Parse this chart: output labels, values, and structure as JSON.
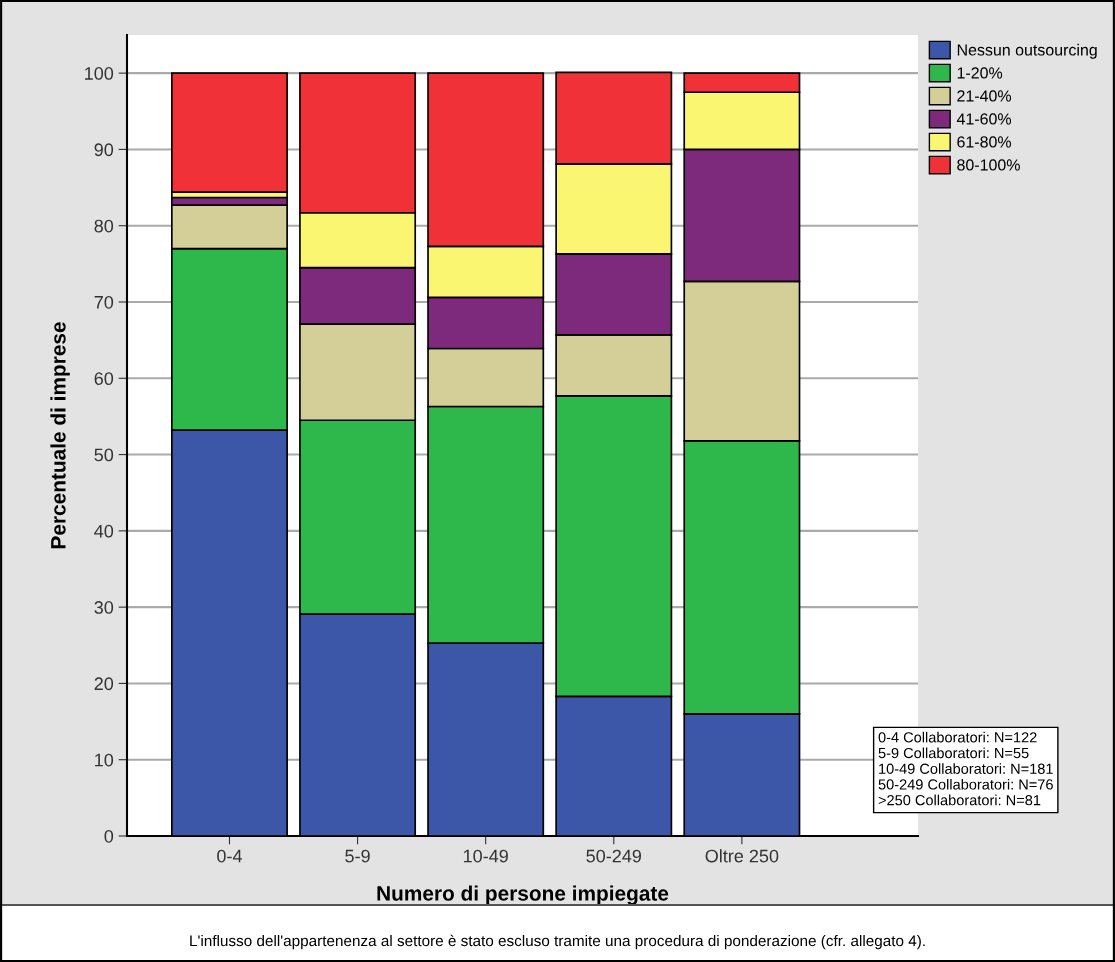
{
  "chart_data": {
    "type": "bar",
    "stacked": true,
    "xlabel": "Numero di persone impiegate",
    "ylabel": "Percentuale di imprese",
    "categories": [
      "0-4",
      "5-9",
      "10-49",
      "50-249",
      "Oltre 250"
    ],
    "series": [
      {
        "name": "Nessun outsourcing",
        "color": "#3c57a8",
        "values": [
          53.2,
          29.1,
          25.3,
          18.3,
          16.0
        ]
      },
      {
        "name": "1-20%",
        "color": "#2eb84b",
        "values": [
          23.8,
          25.4,
          31.0,
          39.4,
          35.8
        ]
      },
      {
        "name": "21-40%",
        "color": "#d4ce98",
        "values": [
          5.7,
          12.6,
          7.6,
          8.0,
          20.9
        ]
      },
      {
        "name": "41-60%",
        "color": "#7e2a7c",
        "values": [
          1.0,
          7.4,
          6.7,
          10.6,
          17.3
        ]
      },
      {
        "name": "61-80%",
        "color": "#faf672",
        "values": [
          0.7,
          7.2,
          6.7,
          11.8,
          7.5
        ]
      },
      {
        "name": "80-100%",
        "color": "#f03238",
        "values": [
          15.6,
          18.3,
          22.7,
          12.0,
          2.5
        ]
      }
    ],
    "ylim": [
      0,
      105
    ],
    "yticks": [
      0,
      10,
      20,
      30,
      40,
      50,
      60,
      70,
      80,
      90,
      100
    ],
    "grid": "y",
    "legend": "top right",
    "annotations": [
      "0-4 Collaboratori: N=122\n5-9 Collaboratori: N=55\n10-49 Collaboratori: N=181\n50-249 Collaboratori: N=76\n>250 Collaboratori: N=81",
      "L'influsso dell'appartenenza al settore è stato escluso tramite una procedura di ponderazione (cfr. allegato 4)."
    ]
  }
}
